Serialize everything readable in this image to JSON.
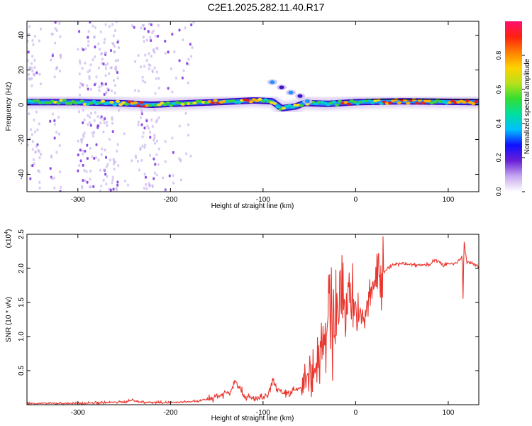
{
  "title": "C2E1.2025.282.11.40.R17",
  "colors": {
    "snr_line": "#e8362e",
    "band_core": "#3cd23c",
    "band_peak": "#e02020",
    "band_mid": "#1e90ff",
    "band_edge": "#3a10c8",
    "halo": "#c9b6ee",
    "frame": "#000000"
  },
  "chart_data": [
    {
      "type": "heatmap",
      "xlabel": "Height of straight line (km)",
      "ylabel": "Frequency (Hz)",
      "xlim": [
        -355,
        133
      ],
      "ylim": [
        -50,
        48
      ],
      "xticks": [
        -300,
        -200,
        -100,
        0,
        100
      ],
      "yticks": [
        -40,
        -20,
        0,
        20,
        40
      ],
      "colorbar": {
        "label": "Normalized spectral amplitude",
        "range": [
          0.0,
          1.0
        ],
        "ticks": [
          "0.0",
          "0.2",
          "0.4",
          "0.6",
          "0.8"
        ],
        "colors": [
          "#ffffff",
          "#c6a8f0",
          "#6a1fd6",
          "#1010ff",
          "#00bfff",
          "#00e0a0",
          "#33dd33",
          "#b8e01a",
          "#ffd200",
          "#ff8000",
          "#ff2010",
          "#ff1070"
        ]
      },
      "band_center_hz": [
        {
          "x": -355,
          "y": 1.5
        },
        {
          "x": -300,
          "y": 1.5
        },
        {
          "x": -250,
          "y": 0.8
        },
        {
          "x": -220,
          "y": 0.0
        },
        {
          "x": -200,
          "y": 0.5
        },
        {
          "x": -150,
          "y": 1.5
        },
        {
          "x": -110,
          "y": 2.5
        },
        {
          "x": -90,
          "y": 2.0
        },
        {
          "x": -80,
          "y": -2.0
        },
        {
          "x": -65,
          "y": -1.0
        },
        {
          "x": -55,
          "y": 1.0
        },
        {
          "x": -30,
          "y": 0.5
        },
        {
          "x": 0,
          "y": 1.5
        },
        {
          "x": 50,
          "y": 2.0
        },
        {
          "x": 133,
          "y": 1.5
        }
      ],
      "side_branch_hz": [
        {
          "x": -90,
          "y": 13
        },
        {
          "x": -80,
          "y": 10
        },
        {
          "x": -70,
          "y": 7
        },
        {
          "x": -60,
          "y": 5
        },
        {
          "x": -52,
          "y": 2
        }
      ],
      "band_peak_segments": [
        [
          -245,
          -225
        ],
        [
          -160,
          -140
        ],
        [
          -120,
          -105
        ],
        [
          -15,
          -5
        ],
        [
          30,
          80
        ],
        [
          100,
          133
        ]
      ]
    },
    {
      "type": "line",
      "xlabel": "Height of straight line (km)",
      "ylabel": "SNR (10 * v/v)",
      "multiplier_label": "(x10",
      "multiplier_exp": "4",
      "multiplier_close": ")",
      "xlim": [
        -355,
        133
      ],
      "ylim": [
        0,
        2.5
      ],
      "xticks": [
        -300,
        -200,
        -100,
        0,
        100
      ],
      "yticks": [
        0.5,
        1.0,
        1.5,
        2.0,
        2.5
      ],
      "series": [
        {
          "x": [
            -355,
            -300,
            -250,
            -240,
            -235,
            -200,
            -170,
            -160,
            -150,
            -135,
            -130,
            -120,
            -110,
            -100,
            -95,
            -90,
            -80,
            -70,
            -60,
            -50,
            -45,
            -40,
            -35,
            -30,
            -25,
            -20,
            -15,
            -10,
            -5,
            0,
            5,
            10,
            15,
            20,
            25,
            30,
            35,
            40,
            50,
            60,
            70,
            80,
            85,
            90,
            95,
            100,
            110,
            115,
            116,
            117,
            120,
            125,
            133
          ],
          "y": [
            0.02,
            0.02,
            0.04,
            0.07,
            0.04,
            0.03,
            0.05,
            0.08,
            0.12,
            0.2,
            0.38,
            0.12,
            0.08,
            0.1,
            0.12,
            0.35,
            0.15,
            0.18,
            0.25,
            0.35,
            0.55,
            0.7,
            1.05,
            1.1,
            1.2,
            1.4,
            1.6,
            1.5,
            1.75,
            1.3,
            1.2,
            1.35,
            1.5,
            1.85,
            1.9,
            1.95,
            2.0,
            2.05,
            2.07,
            2.06,
            2.05,
            2.06,
            2.12,
            2.1,
            2.03,
            2.07,
            2.08,
            2.18,
            1.55,
            2.4,
            2.1,
            2.07,
            2.04
          ]
        }
      ]
    }
  ]
}
